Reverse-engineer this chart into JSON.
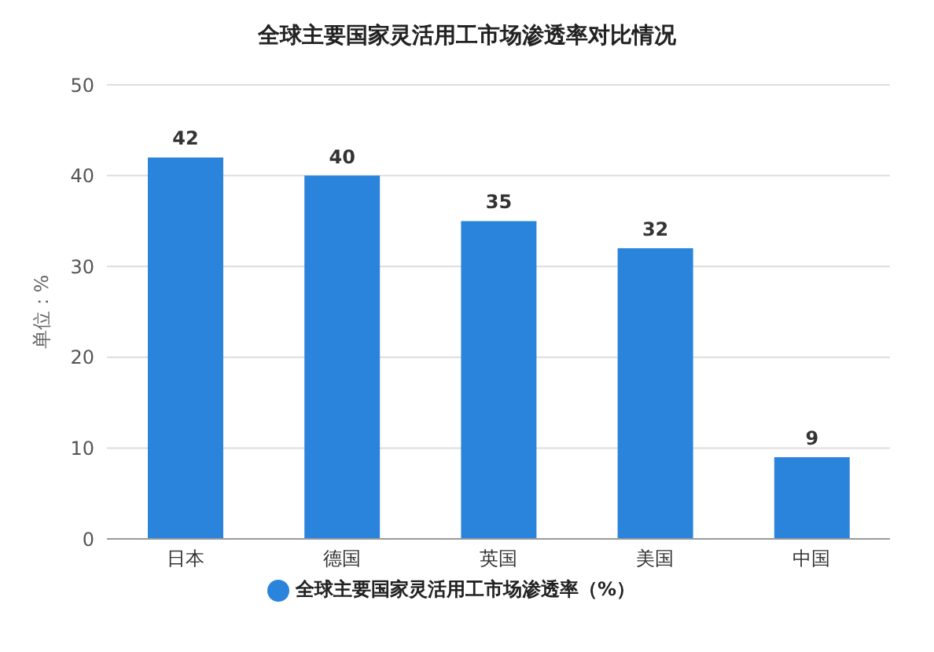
{
  "chart_data": {
    "type": "bar",
    "title": "全球主要国家灵活用工市场渗透率对比情况",
    "ylabel": "单位：%",
    "categories": [
      "日本",
      "德国",
      "英国",
      "美国",
      "中国"
    ],
    "series": [
      {
        "name": "全球主要国家灵活用工市场渗透率（%）",
        "color": "#2b84dc",
        "values": [
          42,
          40,
          35,
          32,
          9
        ]
      }
    ],
    "ylim": [
      0,
      50
    ],
    "yticks": [
      0,
      10,
      20,
      30,
      40,
      50
    ],
    "grid": "y",
    "legend": "bottom",
    "data_labels": true
  }
}
